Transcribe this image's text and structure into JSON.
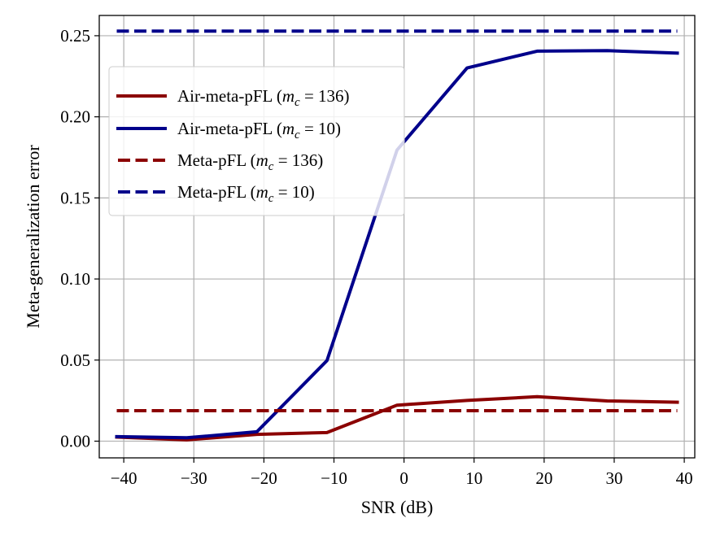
{
  "chart_data": {
    "type": "line",
    "title": "",
    "xlabel": "SNR (dB)",
    "ylabel": "Meta-generalization error",
    "xlim": [
      -43.5,
      41.5
    ],
    "ylim": [
      -0.0103,
      0.2625
    ],
    "xticks": [
      -40,
      -30,
      -20,
      -10,
      0,
      10,
      20,
      30,
      40
    ],
    "xtick_labels": [
      "−40",
      "−30",
      "−20",
      "−10",
      "0",
      "10",
      "20",
      "30",
      "40"
    ],
    "yticks": [
      0.0,
      0.05,
      0.1,
      0.15,
      0.2,
      0.25
    ],
    "ytick_labels": [
      "0.00",
      "0.05",
      "0.10",
      "0.15",
      "0.20",
      "0.25"
    ],
    "grid": true,
    "legend_position": "upper-left",
    "series": [
      {
        "name": "Air-meta-pFL (m_c = 136)",
        "legend_prefix": "Air-meta-pFL (",
        "legend_var": "m",
        "legend_sub": "c",
        "legend_suffix": " = 136)",
        "color": "#8B0000",
        "style": "solid",
        "x": [
          -41,
          -31,
          -21,
          -11,
          -1,
          9,
          19,
          29,
          39
        ],
        "y": [
          0.0025,
          0.0008,
          0.0042,
          0.0053,
          0.0222,
          0.0251,
          0.0274,
          0.0248,
          0.024
        ]
      },
      {
        "name": "Air-meta-pFL (m_c = 10)",
        "legend_prefix": "Air-meta-pFL (",
        "legend_var": "m",
        "legend_sub": "c",
        "legend_suffix": " = 10)",
        "color": "#00008B",
        "style": "solid",
        "x": [
          -41,
          -31,
          -21,
          -11,
          -1,
          9,
          19,
          29,
          39
        ],
        "y": [
          0.0028,
          0.0021,
          0.0058,
          0.0497,
          0.1795,
          0.2301,
          0.2405,
          0.2408,
          0.2393
        ]
      },
      {
        "name": "Meta-pFL (m_c = 136)",
        "legend_prefix": "Meta-pFL (",
        "legend_var": "m",
        "legend_sub": "c",
        "legend_suffix": " = 136)",
        "color": "#8B0000",
        "style": "dashed",
        "x": [
          -41,
          39
        ],
        "y": [
          0.0188,
          0.0188
        ]
      },
      {
        "name": "Meta-pFL (m_c = 10)",
        "legend_prefix": "Meta-pFL (",
        "legend_var": "m",
        "legend_sub": "c",
        "legend_suffix": " = 10)",
        "color": "#00008B",
        "style": "dashed",
        "x": [
          -41,
          39
        ],
        "y": [
          0.2528,
          0.2528
        ]
      }
    ]
  }
}
